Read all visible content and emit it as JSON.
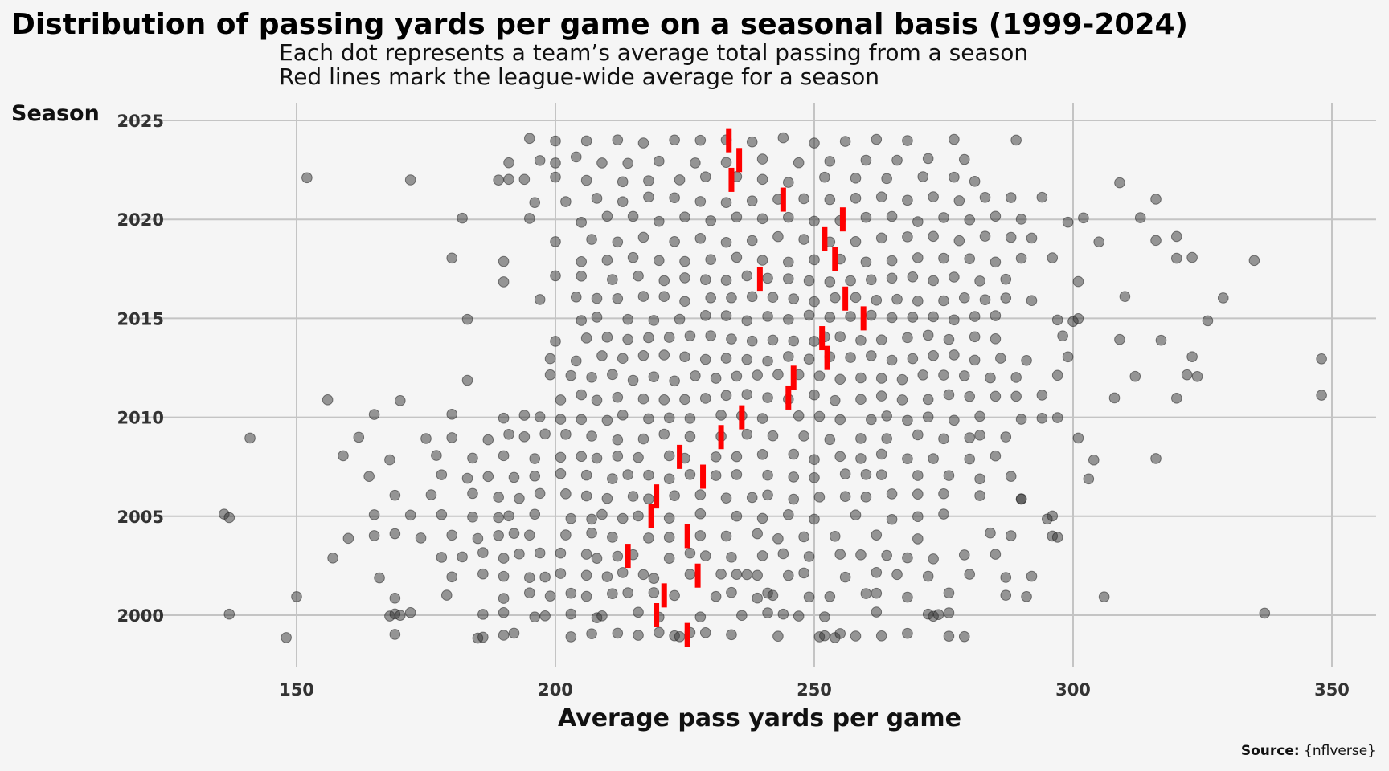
{
  "chart_data": {
    "type": "scatter",
    "title": "Distribution of passing yards per game on a seasonal basis (1999-2024)",
    "subtitle": [
      "Each dot represents a team’s average total passing from a season",
      "Red lines mark the league-wide average for a season"
    ],
    "xlabel": "Average pass yards per game",
    "ylabel": "Season",
    "caption_bold": "Source:",
    "caption_text": " {nflverse}",
    "xlim": [
      125,
      360
    ],
    "ylim": [
      1998,
      2025.5
    ],
    "xticks": [
      150,
      200,
      250,
      300,
      350
    ],
    "yticks": [
      2000,
      2005,
      2010,
      2015,
      2020,
      2025
    ],
    "grid": true,
    "colors": {
      "points": "#333333",
      "average_line": "#ff0000",
      "background": "#f5f5f5",
      "grid": "#c4c4c4"
    },
    "season_averages": [
      {
        "season": 1999,
        "avg": 225.5
      },
      {
        "season": 2000,
        "avg": 219.5
      },
      {
        "season": 2001,
        "avg": 221.0
      },
      {
        "season": 2002,
        "avg": 227.5
      },
      {
        "season": 2003,
        "avg": 214.0
      },
      {
        "season": 2004,
        "avg": 225.5
      },
      {
        "season": 2005,
        "avg": 218.5
      },
      {
        "season": 2006,
        "avg": 219.5
      },
      {
        "season": 2007,
        "avg": 228.5
      },
      {
        "season": 2008,
        "avg": 224.0
      },
      {
        "season": 2009,
        "avg": 232.0
      },
      {
        "season": 2010,
        "avg": 236.0
      },
      {
        "season": 2011,
        "avg": 245.0
      },
      {
        "season": 2012,
        "avg": 246.0
      },
      {
        "season": 2013,
        "avg": 252.5
      },
      {
        "season": 2014,
        "avg": 251.5
      },
      {
        "season": 2015,
        "avg": 259.5
      },
      {
        "season": 2016,
        "avg": 256.0
      },
      {
        "season": 2017,
        "avg": 239.5
      },
      {
        "season": 2018,
        "avg": 254.0
      },
      {
        "season": 2019,
        "avg": 252.0
      },
      {
        "season": 2020,
        "avg": 255.5
      },
      {
        "season": 2021,
        "avg": 244.0
      },
      {
        "season": 2022,
        "avg": 234.0
      },
      {
        "season": 2023,
        "avg": 235.5
      },
      {
        "season": 2024,
        "avg": 233.5
      }
    ],
    "points": [
      {
        "season": 1999,
        "values": [
          148,
          169,
          185,
          186,
          190,
          192,
          203,
          207,
          212,
          216,
          220,
          223,
          224,
          226,
          229,
          234,
          243,
          251,
          252,
          254,
          255,
          258,
          263,
          268,
          276,
          279
        ]
      },
      {
        "season": 2000,
        "values": [
          137,
          168,
          169,
          170,
          172,
          186,
          190,
          196,
          198,
          203,
          208,
          209,
          216,
          220,
          228,
          236,
          241,
          244,
          247,
          252,
          262,
          272,
          273,
          274,
          276,
          337
        ]
      },
      {
        "season": 2001,
        "values": [
          150,
          169,
          179,
          190,
          195,
          199,
          203,
          206,
          211,
          214,
          219,
          223,
          231,
          234,
          239,
          241,
          242,
          249,
          253,
          260,
          262,
          268,
          276,
          287,
          291,
          306
        ]
      },
      {
        "season": 2002,
        "values": [
          166,
          180,
          186,
          190,
          195,
          198,
          201,
          206,
          210,
          213,
          217,
          219,
          226,
          232,
          235,
          237,
          239,
          245,
          248,
          256,
          262,
          266,
          272,
          280,
          287,
          292
        ]
      },
      {
        "season": 2003,
        "values": [
          157,
          178,
          182,
          186,
          190,
          193,
          197,
          201,
          206,
          208,
          212,
          215,
          222,
          226,
          229,
          234,
          240,
          244,
          249,
          255,
          259,
          264,
          268,
          273,
          279,
          285
        ]
      },
      {
        "season": 2004,
        "values": [
          160,
          165,
          169,
          174,
          180,
          185,
          189,
          192,
          195,
          202,
          207,
          211,
          218,
          222,
          228,
          233,
          239,
          243,
          248,
          254,
          262,
          270,
          284,
          288,
          296,
          297
        ]
      },
      {
        "season": 2005,
        "values": [
          136,
          137,
          165,
          172,
          178,
          184,
          189,
          191,
          196,
          203,
          207,
          209,
          213,
          216,
          222,
          228,
          235,
          240,
          245,
          250,
          258,
          265,
          270,
          275,
          295,
          296
        ]
      },
      {
        "season": 2006,
        "values": [
          169,
          176,
          184,
          189,
          193,
          197,
          202,
          206,
          210,
          215,
          218,
          223,
          228,
          233,
          238,
          241,
          246,
          251,
          256,
          260,
          265,
          270,
          275,
          282,
          290,
          290
        ]
      },
      {
        "season": 2007,
        "values": [
          164,
          178,
          183,
          187,
          192,
          196,
          201,
          206,
          211,
          214,
          218,
          222,
          226,
          231,
          235,
          241,
          246,
          250,
          256,
          260,
          263,
          270,
          276,
          282,
          288,
          303
        ]
      },
      {
        "season": 2008,
        "values": [
          159,
          168,
          177,
          184,
          190,
          196,
          201,
          205,
          208,
          212,
          216,
          222,
          225,
          231,
          235,
          240,
          246,
          250,
          255,
          259,
          263,
          268,
          273,
          280,
          285,
          304,
          316
        ]
      },
      {
        "season": 2009,
        "values": [
          141,
          162,
          175,
          180,
          187,
          191,
          194,
          198,
          202,
          207,
          212,
          217,
          221,
          226,
          232,
          237,
          242,
          248,
          253,
          259,
          264,
          270,
          275,
          280,
          282,
          287,
          301
        ]
      },
      {
        "season": 2010,
        "values": [
          165,
          180,
          190,
          194,
          197,
          201,
          205,
          210,
          213,
          218,
          222,
          226,
          232,
          236,
          240,
          247,
          251,
          255,
          261,
          264,
          268,
          272,
          277,
          282,
          290,
          294,
          297
        ]
      },
      {
        "season": 2011,
        "values": [
          156,
          170,
          201,
          205,
          208,
          212,
          217,
          221,
          225,
          229,
          233,
          237,
          241,
          245,
          250,
          254,
          259,
          263,
          267,
          272,
          276,
          280,
          285,
          289,
          294,
          308,
          320,
          348
        ]
      },
      {
        "season": 2012,
        "values": [
          183,
          199,
          203,
          207,
          211,
          215,
          219,
          223,
          227,
          231,
          235,
          239,
          243,
          247,
          251,
          255,
          259,
          263,
          267,
          271,
          275,
          279,
          284,
          289,
          297,
          312,
          322,
          324
        ]
      },
      {
        "season": 2013,
        "values": [
          199,
          204,
          209,
          213,
          217,
          221,
          225,
          229,
          233,
          237,
          241,
          245,
          249,
          253,
          257,
          261,
          265,
          269,
          273,
          277,
          281,
          286,
          291,
          299,
          323,
          348
        ]
      },
      {
        "season": 2014,
        "values": [
          200,
          206,
          210,
          214,
          218,
          222,
          226,
          230,
          234,
          238,
          242,
          246,
          250,
          252,
          255,
          259,
          263,
          268,
          272,
          276,
          281,
          285,
          298,
          309,
          317
        ]
      },
      {
        "season": 2015,
        "values": [
          183,
          205,
          208,
          214,
          219,
          224,
          229,
          233,
          237,
          241,
          245,
          249,
          253,
          257,
          261,
          265,
          269,
          273,
          277,
          281,
          285,
          297,
          300,
          301,
          326
        ]
      },
      {
        "season": 2016,
        "values": [
          197,
          204,
          208,
          212,
          217,
          221,
          225,
          230,
          234,
          238,
          242,
          246,
          250,
          254,
          258,
          262,
          266,
          270,
          275,
          279,
          283,
          287,
          292,
          310,
          329
        ]
      },
      {
        "season": 2017,
        "values": [
          190,
          200,
          205,
          211,
          216,
          221,
          225,
          229,
          233,
          237,
          241,
          245,
          249,
          253,
          257,
          261,
          265,
          269,
          273,
          277,
          282,
          287,
          301
        ]
      },
      {
        "season": 2018,
        "values": [
          180,
          190,
          205,
          210,
          215,
          220,
          225,
          230,
          235,
          240,
          245,
          250,
          255,
          260,
          265,
          270,
          275,
          280,
          285,
          290,
          296,
          320,
          323,
          335
        ]
      },
      {
        "season": 2019,
        "values": [
          200,
          207,
          212,
          217,
          223,
          228,
          233,
          238,
          243,
          248,
          253,
          258,
          263,
          268,
          273,
          278,
          283,
          288,
          292,
          305,
          316,
          320
        ]
      },
      {
        "season": 2020,
        "values": [
          182,
          195,
          205,
          210,
          215,
          220,
          225,
          230,
          235,
          240,
          245,
          250,
          255,
          260,
          265,
          270,
          275,
          280,
          285,
          290,
          299,
          302,
          313
        ]
      },
      {
        "season": 2021,
        "values": [
          196,
          202,
          208,
          213,
          218,
          223,
          228,
          233,
          238,
          243,
          248,
          253,
          258,
          263,
          268,
          273,
          278,
          283,
          288,
          294,
          316
        ]
      },
      {
        "season": 2022,
        "values": [
          152,
          172,
          189,
          191,
          194,
          200,
          206,
          213,
          218,
          224,
          229,
          235,
          240,
          245,
          252,
          258,
          264,
          271,
          277,
          281,
          309
        ]
      },
      {
        "season": 2023,
        "values": [
          191,
          197,
          200,
          204,
          209,
          214,
          220,
          227,
          233,
          240,
          247,
          253,
          260,
          266,
          272,
          279
        ]
      },
      {
        "season": 2024,
        "values": [
          195,
          200,
          206,
          212,
          217,
          223,
          228,
          233,
          238,
          244,
          250,
          256,
          262,
          268,
          277,
          289
        ]
      }
    ]
  }
}
